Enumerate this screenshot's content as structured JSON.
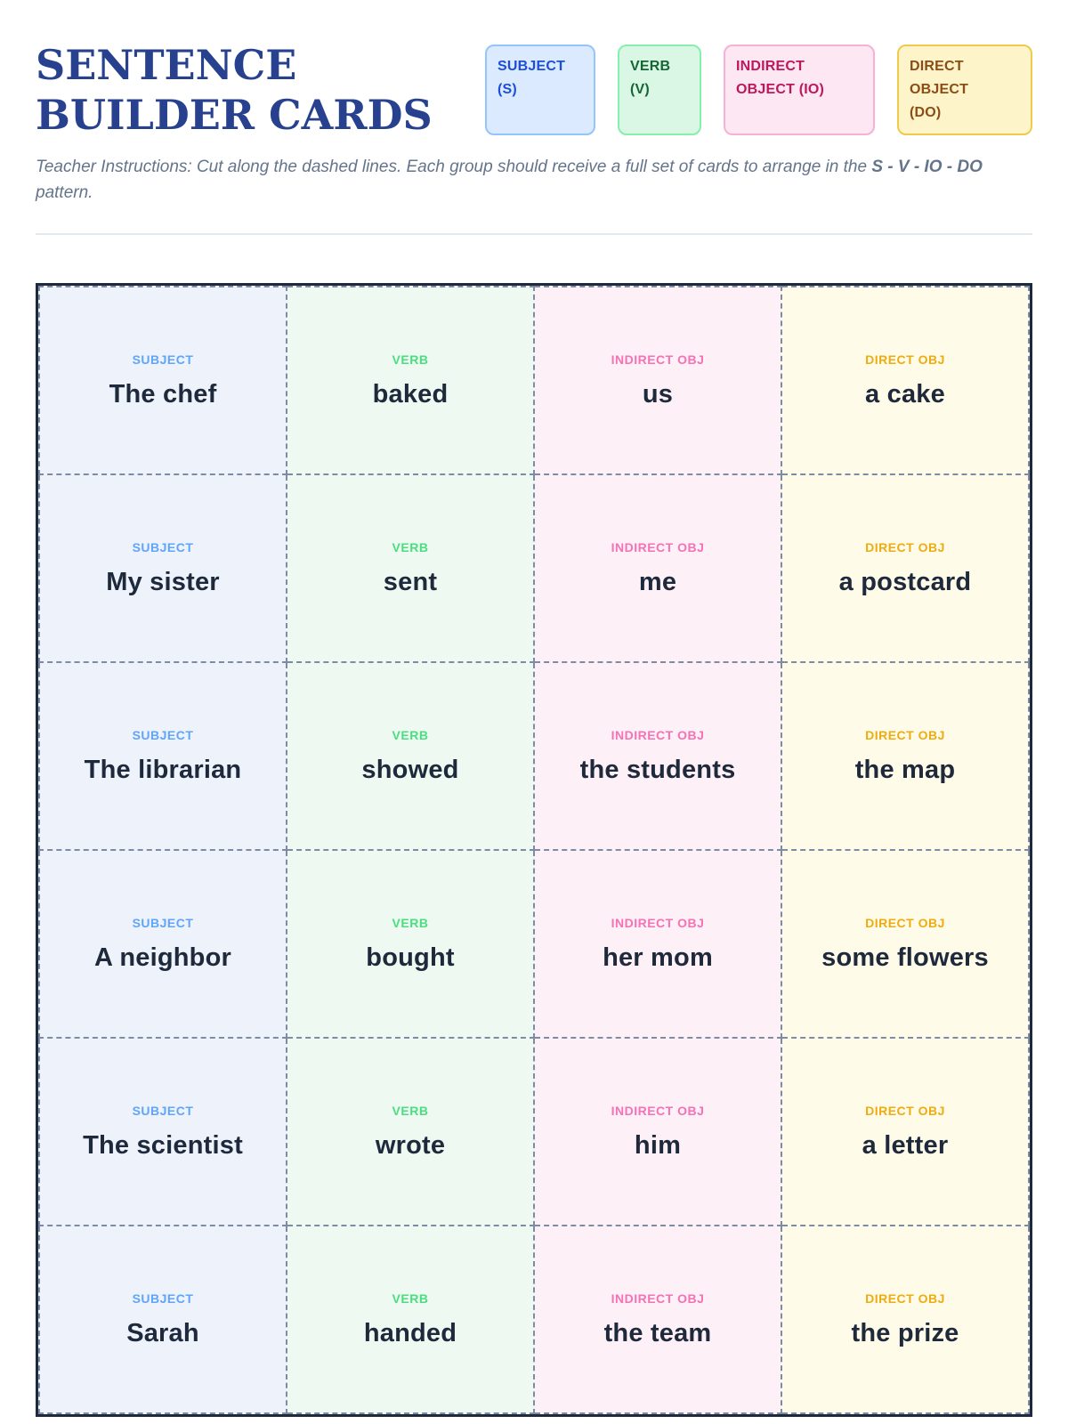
{
  "header": {
    "title": "SENTENCE BUILDER CARDS",
    "title_color": "#27418f",
    "legend": [
      {
        "id": "subject",
        "label": "SUBJECT (S)",
        "bg": "#dbeafe",
        "border": "#93c5fd",
        "text": "#1d4ed8"
      },
      {
        "id": "verb",
        "label": "VERB (V)",
        "bg": "#d9f7e4",
        "border": "#86efac",
        "text": "#166534"
      },
      {
        "id": "indirect-object",
        "label": "INDIRECT OBJECT (IO)",
        "bg": "#fce7f3",
        "border": "#f7b1d7",
        "text": "#be185d"
      },
      {
        "id": "direct-object",
        "label": "DIRECT OBJECT (DO)",
        "bg": "#fdf4c9",
        "border": "#f0ca49",
        "text": "#8c4c15"
      }
    ]
  },
  "instructions": {
    "prefix": "Teacher Instructions: Cut along the dashed lines. Each group should receive a full set of cards to arrange in the ",
    "pattern": "S - V - IO - DO",
    "suffix": " pattern."
  },
  "card_types": {
    "subject": {
      "label": "SUBJECT",
      "label_color": "#60a5fa",
      "bg": "#edf2fb"
    },
    "verb": {
      "label": "VERB",
      "label_color": "#4ade80",
      "bg": "#eefaf1"
    },
    "indirect": {
      "label": "INDIRECT OBJ",
      "label_color": "#f472b6",
      "bg": "#fdf0f6"
    },
    "direct": {
      "label": "DIRECT OBJ",
      "label_color": "#eeac12",
      "bg": "#fefbe9"
    }
  },
  "rows": [
    {
      "subject": "The chef",
      "verb": "baked",
      "indirect": "us",
      "direct": "a cake"
    },
    {
      "subject": "My sister",
      "verb": "sent",
      "indirect": "me",
      "direct": "a postcard"
    },
    {
      "subject": "The librarian",
      "verb": "showed",
      "indirect": "the students",
      "direct": "the map"
    },
    {
      "subject": "A neighbor",
      "verb": "bought",
      "indirect": "her mom",
      "direct": "some flowers"
    },
    {
      "subject": "The scientist",
      "verb": "wrote",
      "indirect": "him",
      "direct": "a letter"
    },
    {
      "subject": "Sarah",
      "verb": "handed",
      "indirect": "the team",
      "direct": "the prize"
    }
  ],
  "grid": {
    "outer_border_color": "#1e293b",
    "dashed_border_color": "#7e8ca3",
    "word_color": "#1e293b"
  }
}
